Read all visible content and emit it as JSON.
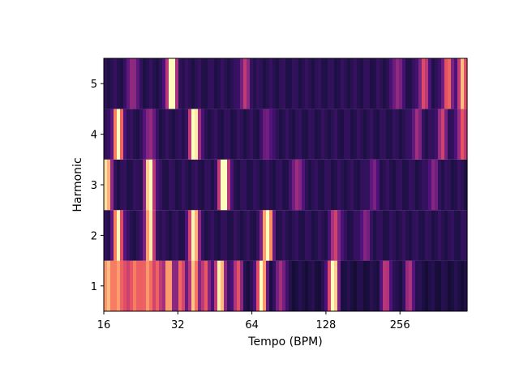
{
  "chart_data": {
    "type": "heatmap",
    "title": "",
    "xlabel": "Tempo (BPM)",
    "ylabel": "Harmonic",
    "x_scale": "log2",
    "xlim": [
      16,
      480
    ],
    "x_ticks": [
      16,
      32,
      64,
      128,
      256
    ],
    "x_tick_labels": [
      "16",
      "32",
      "64",
      "128",
      "256"
    ],
    "y_ticks": [
      1,
      2,
      3,
      4,
      5
    ],
    "y_tick_labels": [
      "1",
      "2",
      "3",
      "4",
      "5"
    ],
    "colormap": "magma",
    "colors": {
      "background": "#1e0f3c",
      "dark": "#000004",
      "purple": "#51127c",
      "magenta": "#b73779",
      "orange": "#fc8961",
      "yellow": "#fcfdbf"
    },
    "rows": [
      {
        "harmonic": 1,
        "base": 0.13,
        "peaks": [
          {
            "bpm": 16.2,
            "intensity": 0.5
          },
          {
            "bpm": 17.0,
            "intensity": 0.45
          },
          {
            "bpm": 18.2,
            "intensity": 0.6
          },
          {
            "bpm": 19.6,
            "intensity": 0.45
          },
          {
            "bpm": 21.2,
            "intensity": 0.5
          },
          {
            "bpm": 22.6,
            "intensity": 0.45
          },
          {
            "bpm": 24.4,
            "intensity": 0.65
          },
          {
            "bpm": 26.6,
            "intensity": 0.5
          },
          {
            "bpm": 29.4,
            "intensity": 0.72
          },
          {
            "bpm": 33.0,
            "intensity": 0.55
          },
          {
            "bpm": 37.2,
            "intensity": 0.75
          },
          {
            "bpm": 41.5,
            "intensity": 0.5
          },
          {
            "bpm": 47.6,
            "intensity": 0.9
          },
          {
            "bpm": 56.0,
            "intensity": 0.5
          },
          {
            "bpm": 70.0,
            "intensity": 0.92
          },
          {
            "bpm": 84.0,
            "intensity": 0.35
          },
          {
            "bpm": 137.0,
            "intensity": 1.0
          },
          {
            "bpm": 225.0,
            "intensity": 0.4
          },
          {
            "bpm": 280.0,
            "intensity": 0.35
          }
        ]
      },
      {
        "harmonic": 2,
        "base": 0.16,
        "peaks": [
          {
            "bpm": 18.3,
            "intensity": 0.82
          },
          {
            "bpm": 24.6,
            "intensity": 0.82
          },
          {
            "bpm": 37.2,
            "intensity": 0.88
          },
          {
            "bpm": 74.0,
            "intensity": 1.0
          },
          {
            "bpm": 140.0,
            "intensity": 0.42
          },
          {
            "bpm": 185.0,
            "intensity": 0.22
          }
        ]
      },
      {
        "harmonic": 3,
        "base": 0.16,
        "peaks": [
          {
            "bpm": 16.4,
            "intensity": 0.85
          },
          {
            "bpm": 24.6,
            "intensity": 0.88
          },
          {
            "bpm": 49.2,
            "intensity": 1.0
          },
          {
            "bpm": 98.0,
            "intensity": 0.32
          },
          {
            "bpm": 200.0,
            "intensity": 0.18
          },
          {
            "bpm": 350.0,
            "intensity": 0.22
          }
        ]
      },
      {
        "harmonic": 4,
        "base": 0.16,
        "peaks": [
          {
            "bpm": 18.3,
            "intensity": 0.88
          },
          {
            "bpm": 24.6,
            "intensity": 0.3
          },
          {
            "bpm": 37.4,
            "intensity": 0.95
          },
          {
            "bpm": 74.0,
            "intensity": 0.2
          },
          {
            "bpm": 300.0,
            "intensity": 0.28
          },
          {
            "bpm": 380.0,
            "intensity": 0.38
          },
          {
            "bpm": 460.0,
            "intensity": 0.5
          }
        ]
      },
      {
        "harmonic": 5,
        "base": 0.16,
        "peaks": [
          {
            "bpm": 21.0,
            "intensity": 0.3
          },
          {
            "bpm": 30.2,
            "intensity": 0.95
          },
          {
            "bpm": 60.0,
            "intensity": 0.35
          },
          {
            "bpm": 250.0,
            "intensity": 0.28
          },
          {
            "bpm": 320.0,
            "intensity": 0.45
          },
          {
            "bpm": 400.0,
            "intensity": 0.55
          },
          {
            "bpm": 460.0,
            "intensity": 0.68
          }
        ]
      }
    ]
  }
}
